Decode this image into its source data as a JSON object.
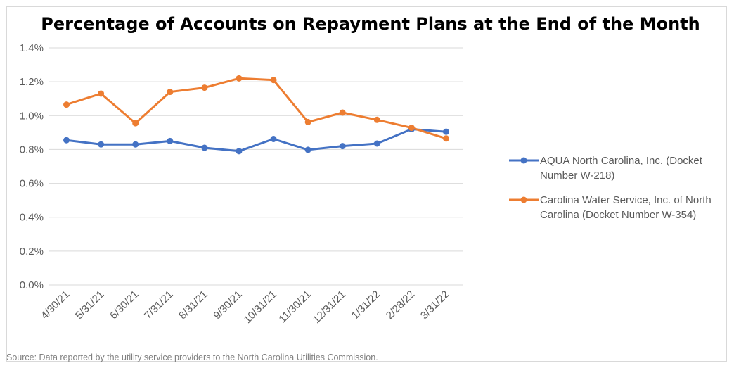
{
  "chart_data": {
    "type": "line",
    "title": "Percentage of Accounts on Repayment Plans at the End of the Month",
    "xlabel": "",
    "ylabel": "",
    "categories": [
      "4/30/21",
      "5/31/21",
      "6/30/21",
      "7/31/21",
      "8/31/21",
      "9/30/21",
      "10/31/21",
      "11/30/21",
      "12/31/21",
      "1/31/22",
      "2/28/22",
      "3/31/22"
    ],
    "yticks": [
      "0.0%",
      "0.2%",
      "0.4%",
      "0.6%",
      "0.8%",
      "1.0%",
      "1.2%",
      "1.4%"
    ],
    "ylim": [
      0,
      1.4
    ],
    "grid": true,
    "legend_position": "right",
    "series": [
      {
        "name": "AQUA North Carolina, Inc. (Docket Number W-218)",
        "legend_lines": [
          "AQUA North Carolina, Inc. (Docket",
          "Number W-218)"
        ],
        "color": "#4472c4",
        "values": [
          0.855,
          0.83,
          0.83,
          0.85,
          0.81,
          0.79,
          0.862,
          0.798,
          0.82,
          0.835,
          0.92,
          0.905
        ]
      },
      {
        "name": "Carolina Water Service, Inc. of North Carolina (Docket Number W-354)",
        "legend_lines": [
          "Carolina Water Service, Inc. of North",
          "Carolina (Docket Number W-354)"
        ],
        "color": "#ed7d31",
        "values": [
          1.065,
          1.13,
          0.955,
          1.14,
          1.165,
          1.22,
          1.21,
          0.962,
          1.018,
          0.975,
          0.928,
          0.865
        ]
      }
    ]
  },
  "footer": {
    "source": "Source: Data reported by the utility service providers to the North Carolina Utilities Commission."
  }
}
